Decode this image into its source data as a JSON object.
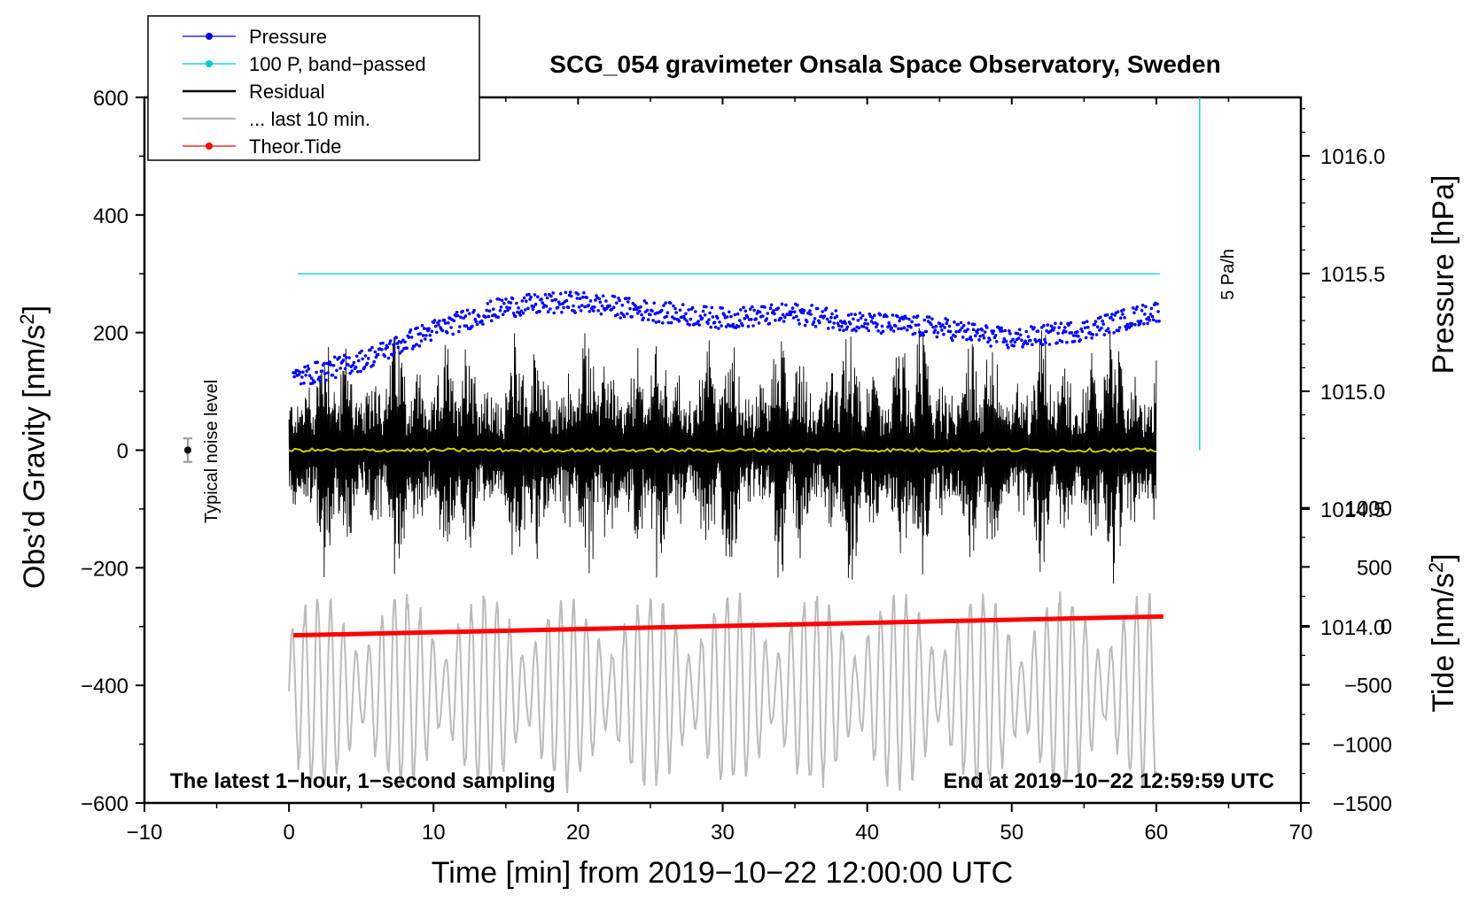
{
  "chart_data": {
    "type": "line",
    "title": "SCG_054 gravimeter Onsala Space Observatory, Sweden",
    "xlabel": "Time [min] from 2019−10−22 12:00:00 UTC",
    "ylabel_left": "Obs’d Gravity [nm/s²]",
    "ylabel_right_top": "Pressure [hPa]",
    "ylabel_right_bottom": "Tide [nm/s²]",
    "xlim": [
      -10,
      70
    ],
    "ylim_left": [
      -600,
      600
    ],
    "x_ticks": [
      -10,
      0,
      10,
      20,
      30,
      40,
      50,
      60,
      70
    ],
    "x_tick_labels": [
      "−10",
      "0",
      "10",
      "20",
      "30",
      "40",
      "50",
      "60",
      "70"
    ],
    "y_left_ticks": [
      600,
      400,
      200,
      0,
      -200,
      -400,
      -600
    ],
    "y_left_tick_labels": [
      "600",
      "400",
      "200",
      "0",
      "−200",
      "−400",
      "−600"
    ],
    "pressure_ticks": [
      1016.0,
      1015.5,
      1015.0,
      1014.5,
      1014.0
    ],
    "pressure_tick_labels": [
      "1016.0",
      "1015.5",
      "1015.0",
      "1014.5",
      "1014.0"
    ],
    "tide_ticks": [
      1000,
      500,
      0,
      -500,
      -1000,
      -1500
    ],
    "tide_tick_labels": [
      "1000",
      "500",
      "0",
      "−500",
      "−1000",
      "−1500"
    ],
    "legend": [
      {
        "label": "Pressure",
        "color": "#0000ff",
        "style": "line-dot"
      },
      {
        "label": "100 P, band−passed",
        "color": "#00cccc",
        "style": "line-dot"
      },
      {
        "label": "Residual",
        "color": "#000000",
        "style": "line"
      },
      {
        "label": "... last 10 min.",
        "color": "#bbbbbb",
        "style": "line"
      },
      {
        "label": "Theor.Tide",
        "color": "#ff0000",
        "style": "line-dot"
      }
    ],
    "series": [
      {
        "name": "Pressure",
        "axis": "pressure_hPa",
        "color": "#0000ff",
        "x": [
          0,
          5,
          10,
          15,
          20,
          25,
          30,
          35,
          40,
          45,
          50,
          55,
          60
        ],
        "values": [
          1015.05,
          1015.13,
          1015.26,
          1015.36,
          1015.38,
          1015.34,
          1015.31,
          1015.33,
          1015.29,
          1015.27,
          1015.22,
          1015.26,
          1015.34
        ]
      },
      {
        "name": "100 P, band−passed",
        "axis": "gravity_nm_s2",
        "color": "#00cccc",
        "x": [
          0,
          60
        ],
        "values": [
          300,
          300
        ]
      },
      {
        "name": "Residual",
        "axis": "gravity_nm_s2",
        "color": "#000000",
        "x": [
          0,
          60
        ],
        "values": [
          0,
          0
        ],
        "amplitude_range": [
          -200,
          230
        ]
      },
      {
        "name": "... last 10 min.",
        "axis": "gravity_nm_s2",
        "color": "#bbbbbb",
        "x": [
          0,
          60
        ],
        "values": [
          -410,
          -410
        ],
        "amplitude_range": [
          -550,
          -200
        ]
      },
      {
        "name": "Theor.Tide",
        "axis": "tide_nm_s2",
        "color": "#ff0000",
        "x": [
          0,
          60
        ],
        "values": [
          -80,
          80
        ]
      },
      {
        "name": "Residual mean",
        "axis": "gravity_nm_s2",
        "color": "#cccc00",
        "x": [
          0,
          60
        ],
        "values": [
          0,
          0
        ]
      }
    ],
    "noise_marker": {
      "x": -7,
      "y": 0,
      "err": 20,
      "label": "Typical noise level"
    },
    "scale_bar": {
      "x": 63,
      "label": "5 Pa/h"
    },
    "footer_left": "The latest 1−hour, 1−second sampling",
    "footer_right": "End at 2019−10−22 12:59:59 UTC",
    "grid": false,
    "legend_position": "top-left"
  }
}
